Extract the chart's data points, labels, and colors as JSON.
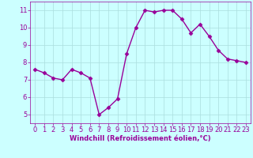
{
  "x": [
    0,
    1,
    2,
    3,
    4,
    5,
    6,
    7,
    8,
    9,
    10,
    11,
    12,
    13,
    14,
    15,
    16,
    17,
    18,
    19,
    20,
    21,
    22,
    23
  ],
  "y": [
    7.6,
    7.4,
    7.1,
    7.0,
    7.6,
    7.4,
    7.1,
    5.0,
    5.4,
    5.9,
    8.5,
    10.0,
    11.0,
    10.9,
    11.0,
    11.0,
    10.5,
    9.7,
    10.2,
    9.5,
    8.7,
    8.2,
    8.1,
    8.0
  ],
  "line_color": "#990099",
  "marker": "D",
  "marker_size": 2.5,
  "bg_color": "#ccffff",
  "grid_color": "#aadddd",
  "xlabel": "Windchill (Refroidissement éolien,°C)",
  "xlabel_color": "#990099",
  "tick_color": "#990099",
  "label_color": "#990099",
  "ylim": [
    4.5,
    11.5
  ],
  "xlim": [
    -0.5,
    23.5
  ],
  "yticks": [
    5,
    6,
    7,
    8,
    9,
    10,
    11
  ],
  "xticks": [
    0,
    1,
    2,
    3,
    4,
    5,
    6,
    7,
    8,
    9,
    10,
    11,
    12,
    13,
    14,
    15,
    16,
    17,
    18,
    19,
    20,
    21,
    22,
    23
  ],
  "linewidth": 1.0,
  "spine_color": "#990099",
  "tick_fontsize": 6,
  "xlabel_fontsize": 6
}
